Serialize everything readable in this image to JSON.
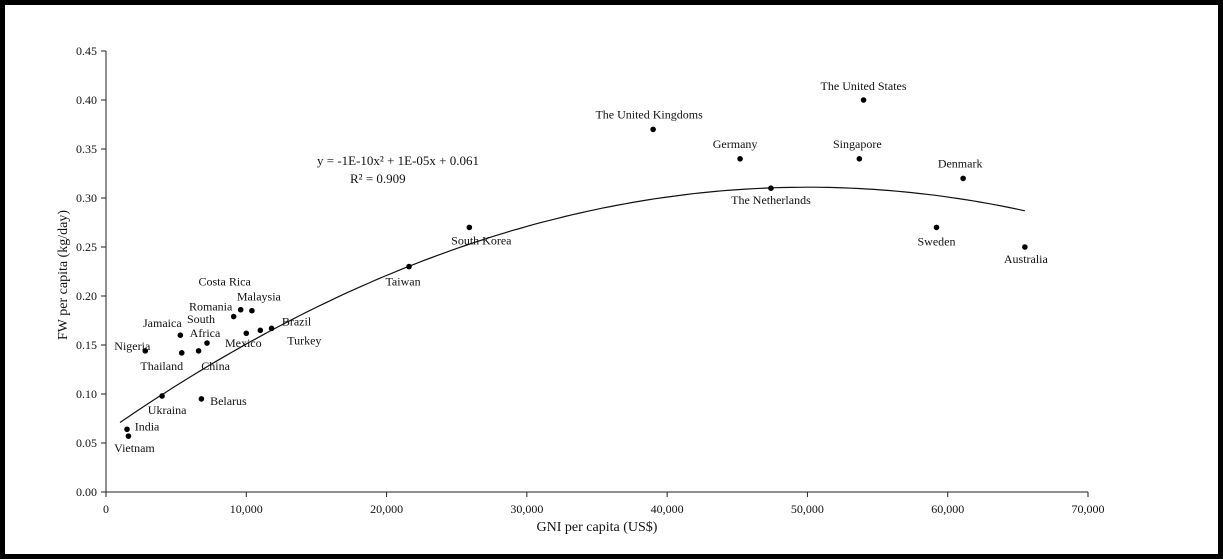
{
  "chart_data": {
    "type": "scatter",
    "xlabel": "GNI per capita (US$)",
    "ylabel": "FW per capita (kg/day)",
    "xlim": [
      0,
      70000
    ],
    "ylim": [
      0,
      0.45
    ],
    "x_ticks": [
      "0",
      "10,000",
      "20,000",
      "30,000",
      "40,000",
      "50,000",
      "60,000",
      "70,000"
    ],
    "y_ticks": [
      "0.00",
      "0.05",
      "0.10",
      "0.15",
      "0.20",
      "0.25",
      "0.30",
      "0.35",
      "0.40",
      "0.45"
    ],
    "grid": false,
    "trendline": {
      "kind": "polynomial",
      "coefficients": [
        0.061,
        1e-05,
        -1e-10
      ],
      "x_range": [
        1000,
        65500
      ],
      "equation_label": "y = -1E-10x² + 1E-05x + 0.061",
      "r2_label": "R² = 0.909"
    },
    "points": [
      {
        "label": "The United States",
        "x": 54000,
        "y": 0.4
      },
      {
        "label": "The United Kingdoms",
        "x": 39000,
        "y": 0.37
      },
      {
        "label": "Germany",
        "x": 45200,
        "y": 0.34
      },
      {
        "label": "Singapore",
        "x": 53700,
        "y": 0.34
      },
      {
        "label": "Denmark",
        "x": 61100,
        "y": 0.32
      },
      {
        "label": "The Netherlands",
        "x": 47400,
        "y": 0.31
      },
      {
        "label": "Sweden",
        "x": 59200,
        "y": 0.27
      },
      {
        "label": "Australia",
        "x": 65500,
        "y": 0.25
      },
      {
        "label": "South Korea",
        "x": 25900,
        "y": 0.27
      },
      {
        "label": "Taiwan",
        "x": 21600,
        "y": 0.23
      },
      {
        "label": "Costa Rica",
        "x": 9600,
        "y": 0.186
      },
      {
        "label": "Malaysia",
        "x": 10400,
        "y": 0.185
      },
      {
        "label": "Romania",
        "x": 9100,
        "y": 0.179
      },
      {
        "label": "Brazil",
        "x": 11800,
        "y": 0.167
      },
      {
        "label": "Turkey",
        "x": 11000,
        "y": 0.165
      },
      {
        "label": "Mexico",
        "x": 10000,
        "y": 0.162
      },
      {
        "label": "Jamaica",
        "x": 5300,
        "y": 0.16
      },
      {
        "label": "South Africa",
        "x": 7200,
        "y": 0.152
      },
      {
        "label": "Nigeria",
        "x": 2800,
        "y": 0.144
      },
      {
        "label": "Thailand",
        "x": 5400,
        "y": 0.142
      },
      {
        "label": "China",
        "x": 6600,
        "y": 0.144
      },
      {
        "label": "Ukraina",
        "x": 4000,
        "y": 0.098
      },
      {
        "label": "Belarus",
        "x": 6800,
        "y": 0.095
      },
      {
        "label": "India",
        "x": 1500,
        "y": 0.064
      },
      {
        "label": "Vietnam",
        "x": 1600,
        "y": 0.057
      }
    ]
  }
}
